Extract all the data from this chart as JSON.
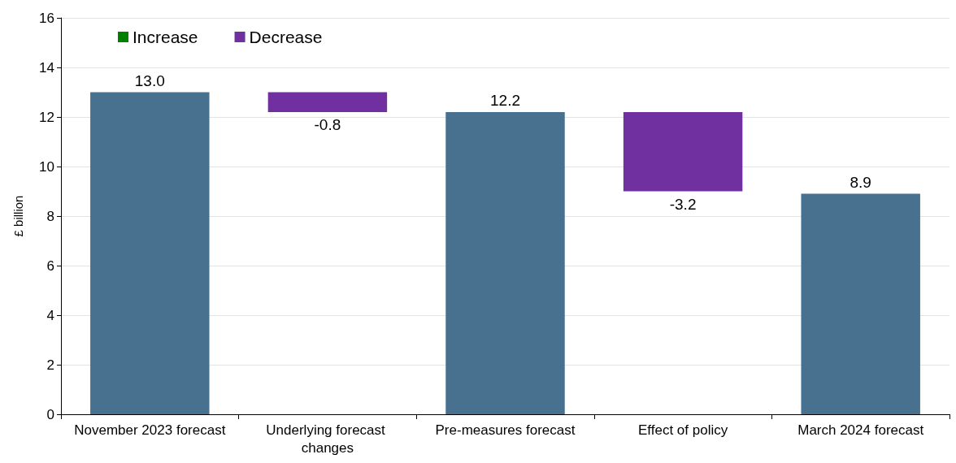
{
  "chart_data": {
    "type": "bar",
    "ylabel": "£ billion",
    "categories": [
      "November 2023 forecast",
      "Underlying forecast changes",
      "Pre-measures forecast",
      "Effect of policy",
      "March 2024 forecast"
    ],
    "series": [
      {
        "color": "#47718f",
        "values": [
          13.0,
          null,
          12.2,
          null,
          8.9
        ],
        "value_labels": [
          "13.0",
          null,
          "12.2",
          null,
          "8.9"
        ]
      },
      {
        "name": "Increase",
        "color": "#008000",
        "values": [
          null,
          null,
          null,
          null,
          null
        ]
      },
      {
        "name": "Decrease",
        "color": "#7030a0",
        "values": [
          null,
          -0.8,
          null,
          -3.2,
          null
        ],
        "base": [
          null,
          13.0,
          null,
          12.2,
          null
        ],
        "value_labels": [
          null,
          "-0.8",
          null,
          "-3.2",
          null
        ]
      }
    ],
    "ylim": [
      0,
      16
    ],
    "yticks": [
      0,
      2,
      4,
      6,
      8,
      10,
      12,
      14,
      16
    ],
    "grid": "y",
    "legend": "top left"
  }
}
